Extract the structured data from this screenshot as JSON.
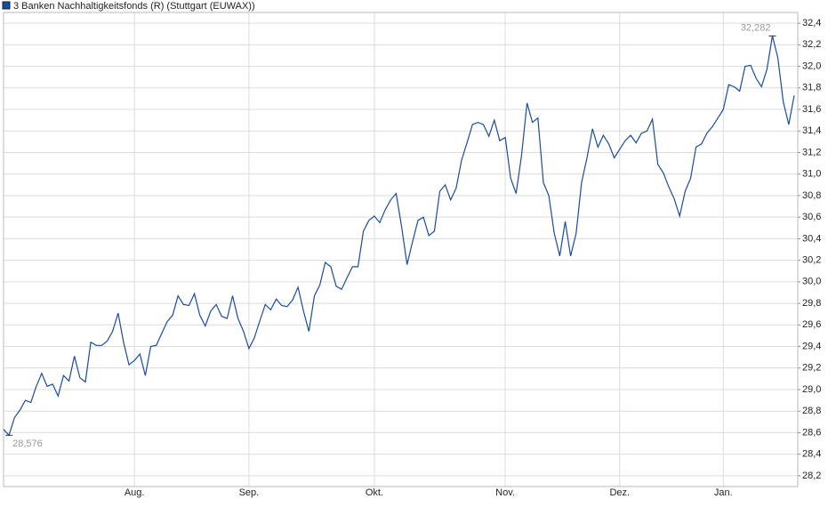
{
  "chart_data": {
    "type": "line",
    "categories": [
      null,
      null,
      null,
      null,
      null,
      null,
      null,
      null,
      null,
      null,
      null,
      null,
      null,
      null,
      null,
      null,
      null,
      null,
      null,
      null,
      null,
      null,
      null,
      null,
      "Aug.",
      null,
      null,
      null,
      null,
      null,
      null,
      null,
      null,
      null,
      null,
      null,
      null,
      null,
      null,
      null,
      null,
      null,
      null,
      null,
      null,
      "Sep.",
      null,
      null,
      null,
      null,
      null,
      null,
      null,
      null,
      null,
      null,
      null,
      null,
      null,
      null,
      null,
      null,
      null,
      null,
      null,
      null,
      null,
      null,
      "Okt.",
      null,
      null,
      null,
      null,
      null,
      null,
      null,
      null,
      null,
      null,
      null,
      null,
      null,
      null,
      null,
      null,
      null,
      null,
      null,
      null,
      null,
      null,
      null,
      "Nov.",
      null,
      null,
      null,
      null,
      null,
      null,
      null,
      null,
      null,
      null,
      null,
      null,
      null,
      null,
      null,
      null,
      null,
      null,
      null,
      null,
      "Dez.",
      null,
      null,
      null,
      null,
      null,
      null,
      null,
      null,
      null,
      null,
      null,
      null,
      null,
      null,
      null,
      null,
      null,
      null,
      "Jan.",
      null,
      null,
      null,
      null,
      null,
      null,
      null,
      null,
      null,
      null,
      null,
      null,
      null
    ],
    "series": [
      {
        "name": "3 Banken Nachhaltigkeitsfonds (R) (Stuttgart (EUWAX))",
        "color": "#1a4c9c",
        "values": [
          28.63,
          28.576,
          28.74,
          28.81,
          28.9,
          28.88,
          29.03,
          29.15,
          29.03,
          29.05,
          28.94,
          29.13,
          29.08,
          29.31,
          29.11,
          29.07,
          29.44,
          29.41,
          29.41,
          29.45,
          29.54,
          29.71,
          29.44,
          29.23,
          29.27,
          29.33,
          29.13,
          29.4,
          29.41,
          29.52,
          29.63,
          29.69,
          29.87,
          29.79,
          29.78,
          29.89,
          29.69,
          29.59,
          29.73,
          29.79,
          29.68,
          29.66,
          29.87,
          29.66,
          29.54,
          29.38,
          29.48,
          29.64,
          29.79,
          29.74,
          29.84,
          29.78,
          29.77,
          29.83,
          29.95,
          29.73,
          29.54,
          29.87,
          29.97,
          30.18,
          30.14,
          29.96,
          29.93,
          30.04,
          30.14,
          30.14,
          30.47,
          30.57,
          30.61,
          30.55,
          30.67,
          30.76,
          30.82,
          30.51,
          30.16,
          30.37,
          30.57,
          30.6,
          30.43,
          30.47,
          30.84,
          30.9,
          30.76,
          30.87,
          31.13,
          31.29,
          31.46,
          31.48,
          31.46,
          31.35,
          31.5,
          31.31,
          31.34,
          30.96,
          30.82,
          31.17,
          31.66,
          31.48,
          31.52,
          30.92,
          30.8,
          30.45,
          30.24,
          30.56,
          30.24,
          30.45,
          30.92,
          31.15,
          31.42,
          31.25,
          31.36,
          31.28,
          31.15,
          31.23,
          31.31,
          31.36,
          31.29,
          31.38,
          31.4,
          31.51,
          31.09,
          31.01,
          30.88,
          30.77,
          30.61,
          30.84,
          30.96,
          31.25,
          31.28,
          31.38,
          31.44,
          31.52,
          31.6,
          31.83,
          31.81,
          31.77,
          32.0,
          32.01,
          31.89,
          31.81,
          31.97,
          32.282,
          32.08,
          31.67,
          31.46,
          31.73
        ],
        "value_labels": [
          null,
          "28,576",
          null,
          null,
          null,
          null,
          null,
          null,
          null,
          null,
          null,
          null,
          null,
          null,
          null,
          null,
          null,
          null,
          null,
          null,
          null,
          null,
          null,
          null,
          null,
          null,
          null,
          null,
          null,
          null,
          null,
          null,
          null,
          null,
          null,
          null,
          null,
          null,
          null,
          null,
          null,
          null,
          null,
          null,
          null,
          null,
          null,
          null,
          null,
          null,
          null,
          null,
          null,
          null,
          null,
          null,
          null,
          null,
          null,
          null,
          null,
          null,
          null,
          null,
          null,
          null,
          null,
          null,
          null,
          null,
          null,
          null,
          null,
          null,
          null,
          null,
          null,
          null,
          null,
          null,
          null,
          null,
          null,
          null,
          null,
          null,
          null,
          null,
          null,
          null,
          null,
          null,
          null,
          null,
          null,
          null,
          null,
          null,
          null,
          null,
          null,
          null,
          null,
          null,
          null,
          null,
          null,
          null,
          null,
          null,
          null,
          null,
          null,
          null,
          null,
          null,
          null,
          null,
          null,
          null,
          null,
          null,
          null,
          null,
          null,
          null,
          null,
          null,
          null,
          null,
          null,
          null,
          null,
          null,
          null,
          null,
          null,
          null,
          null,
          null,
          null,
          "32,282",
          null,
          null,
          null,
          null
        ]
      }
    ],
    "ylim": [
      28.1,
      32.5
    ],
    "yticks": [
      {
        "value": 28.2,
        "label": "28,2"
      },
      {
        "value": 28.4,
        "label": "28,4"
      },
      {
        "value": 28.6,
        "label": "28,6"
      },
      {
        "value": 28.8,
        "label": "28,8"
      },
      {
        "value": 29.0,
        "label": "29,0"
      },
      {
        "value": 29.2,
        "label": "29,2"
      },
      {
        "value": 29.4,
        "label": "29,4"
      },
      {
        "value": 29.6,
        "label": "29,6"
      },
      {
        "value": 29.8,
        "label": "29,8"
      },
      {
        "value": 30.0,
        "label": "30,0"
      },
      {
        "value": 30.2,
        "label": "30,2"
      },
      {
        "value": 30.4,
        "label": "30,4"
      },
      {
        "value": 30.6,
        "label": "30,6"
      },
      {
        "value": 30.8,
        "label": "30,8"
      },
      {
        "value": 31.0,
        "label": "31,0"
      },
      {
        "value": 31.2,
        "label": "31,2"
      },
      {
        "value": 31.4,
        "label": "31,4"
      },
      {
        "value": 31.6,
        "label": "31,6"
      },
      {
        "value": 31.8,
        "label": "31,8"
      },
      {
        "value": 32.0,
        "label": "32,0"
      },
      {
        "value": 32.2,
        "label": "32,2"
      },
      {
        "value": 32.4,
        "label": "32,4"
      }
    ],
    "grid": true,
    "legend": "top-left"
  }
}
